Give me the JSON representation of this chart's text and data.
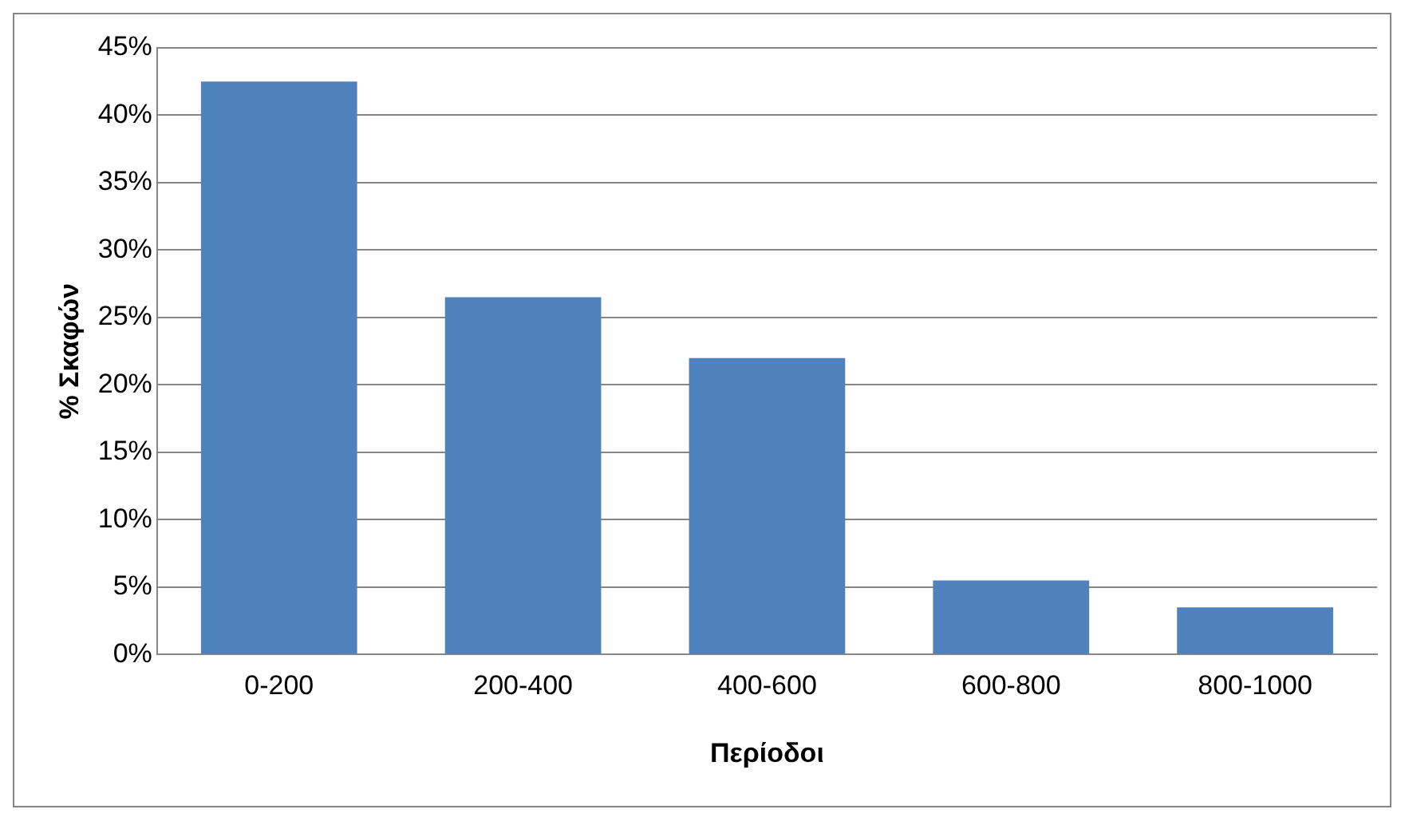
{
  "chart_data": {
    "type": "bar",
    "xlabel": "Περίοδοι",
    "ylabel": "% Σκαφών",
    "categories": [
      "0-200",
      "200-400",
      "400-600",
      "600-800",
      "800-1000"
    ],
    "values": [
      42.5,
      26.5,
      22.0,
      5.5,
      3.5
    ],
    "color": "#4f81bd",
    "ylim": [
      0,
      45
    ],
    "yticks": [
      {
        "value": 0,
        "label": "0%"
      },
      {
        "value": 5,
        "label": "5%"
      },
      {
        "value": 10,
        "label": "10%"
      },
      {
        "value": 15,
        "label": "15%"
      },
      {
        "value": 20,
        "label": "20%"
      },
      {
        "value": 25,
        "label": "25%"
      },
      {
        "value": 30,
        "label": "30%"
      },
      {
        "value": 35,
        "label": "35%"
      },
      {
        "value": 40,
        "label": "40%"
      },
      {
        "value": 45,
        "label": "45%"
      }
    ],
    "grid": "y",
    "legend": false
  }
}
